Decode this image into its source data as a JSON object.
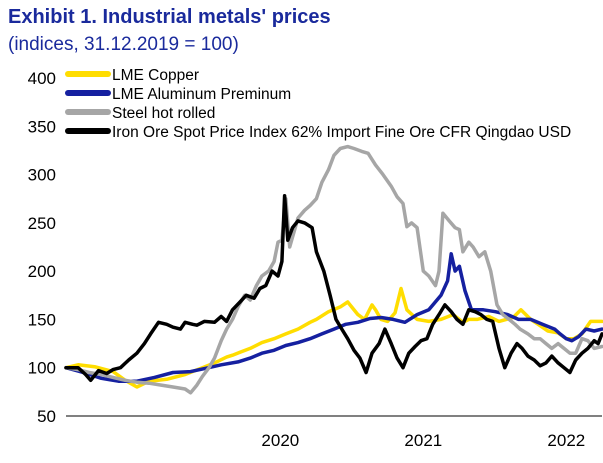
{
  "header": {
    "title": "Exhibit 1. Industrial metals' prices",
    "subtitle": "(indices, 31.12.2019 = 100)"
  },
  "chart_data": {
    "type": "line",
    "x_type": "date",
    "xlim": [
      "2019-01-01",
      "2022-09-30"
    ],
    "ylim": [
      50,
      400
    ],
    "yticks": [
      50,
      100,
      150,
      200,
      250,
      300,
      350,
      400
    ],
    "xtick_labels": [
      {
        "date": "2020-07-01",
        "label": "2020"
      },
      {
        "date": "2021-07-01",
        "label": "2021"
      },
      {
        "date": "2022-07-01",
        "label": "2022"
      }
    ],
    "grid": false,
    "legend_position": "top-left",
    "series": [
      {
        "name": "LME Copper",
        "color": "#ffdd00",
        "points": [
          [
            "2019-01-01",
            100
          ],
          [
            "2019-02-01",
            103
          ],
          [
            "2019-03-15",
            101
          ],
          [
            "2019-05-01",
            96
          ],
          [
            "2019-06-01",
            87
          ],
          [
            "2019-07-01",
            80
          ],
          [
            "2019-08-01",
            86
          ],
          [
            "2019-09-15",
            88
          ],
          [
            "2019-11-01",
            93
          ],
          [
            "2019-12-15",
            100
          ],
          [
            "2020-01-15",
            105
          ],
          [
            "2020-02-15",
            111
          ],
          [
            "2020-03-01",
            113
          ],
          [
            "2020-03-20",
            116
          ],
          [
            "2020-04-15",
            120
          ],
          [
            "2020-05-15",
            126
          ],
          [
            "2020-06-15",
            130
          ],
          [
            "2020-07-15",
            135
          ],
          [
            "2020-08-15",
            140
          ],
          [
            "2020-09-15",
            147
          ],
          [
            "2020-10-01",
            150
          ],
          [
            "2020-11-01",
            158
          ],
          [
            "2020-12-01",
            163
          ],
          [
            "2020-12-20",
            168
          ],
          [
            "2021-01-15",
            155
          ],
          [
            "2021-02-01",
            150
          ],
          [
            "2021-02-20",
            165
          ],
          [
            "2021-03-01",
            160
          ],
          [
            "2021-03-15",
            150
          ],
          [
            "2021-04-01",
            148
          ],
          [
            "2021-04-20",
            157
          ],
          [
            "2021-05-05",
            182
          ],
          [
            "2021-05-20",
            160
          ],
          [
            "2021-06-15",
            150
          ],
          [
            "2021-07-15",
            148
          ],
          [
            "2021-08-15",
            150
          ],
          [
            "2021-09-15",
            155
          ],
          [
            "2021-10-10",
            147
          ],
          [
            "2021-10-25",
            150
          ],
          [
            "2021-11-15",
            150
          ],
          [
            "2021-12-15",
            153
          ],
          [
            "2022-01-10",
            148
          ],
          [
            "2022-02-15",
            152
          ],
          [
            "2022-03-07",
            160
          ],
          [
            "2022-04-01",
            150
          ],
          [
            "2022-04-20",
            145
          ],
          [
            "2022-05-15",
            138
          ],
          [
            "2022-06-10",
            136
          ],
          [
            "2022-07-01",
            130
          ],
          [
            "2022-07-20",
            130
          ],
          [
            "2022-08-10",
            135
          ],
          [
            "2022-09-01",
            148
          ],
          [
            "2022-09-30",
            148
          ]
        ]
      },
      {
        "name": "LME Aluminum Preminum",
        "color": "#1520a0",
        "points": [
          [
            "2019-01-01",
            100
          ],
          [
            "2019-02-15",
            95
          ],
          [
            "2019-04-01",
            89
          ],
          [
            "2019-05-15",
            86
          ],
          [
            "2019-07-01",
            86
          ],
          [
            "2019-08-15",
            90
          ],
          [
            "2019-10-01",
            95
          ],
          [
            "2019-11-15",
            96
          ],
          [
            "2019-12-31",
            100
          ],
          [
            "2020-02-01",
            103
          ],
          [
            "2020-03-15",
            106
          ],
          [
            "2020-04-15",
            110
          ],
          [
            "2020-05-15",
            115
          ],
          [
            "2020-06-15",
            118
          ],
          [
            "2020-07-15",
            123
          ],
          [
            "2020-08-15",
            126
          ],
          [
            "2020-09-15",
            130
          ],
          [
            "2020-10-15",
            135
          ],
          [
            "2020-11-15",
            140
          ],
          [
            "2020-12-15",
            145
          ],
          [
            "2021-01-15",
            147
          ],
          [
            "2021-02-15",
            151
          ],
          [
            "2021-03-15",
            152
          ],
          [
            "2021-04-15",
            150
          ],
          [
            "2021-05-15",
            147
          ],
          [
            "2021-06-15",
            155
          ],
          [
            "2021-07-15",
            160
          ],
          [
            "2021-08-15",
            175
          ],
          [
            "2021-09-01",
            190
          ],
          [
            "2021-09-10",
            218
          ],
          [
            "2021-09-20",
            200
          ],
          [
            "2021-10-01",
            205
          ],
          [
            "2021-10-15",
            180
          ],
          [
            "2021-11-01",
            160
          ],
          [
            "2021-12-01",
            160
          ],
          [
            "2022-01-01",
            158
          ],
          [
            "2022-02-01",
            155
          ],
          [
            "2022-03-01",
            150
          ],
          [
            "2022-04-01",
            150
          ],
          [
            "2022-05-01",
            145
          ],
          [
            "2022-06-01",
            140
          ],
          [
            "2022-06-15",
            135
          ],
          [
            "2022-07-01",
            130
          ],
          [
            "2022-07-15",
            128
          ],
          [
            "2022-08-01",
            132
          ],
          [
            "2022-08-20",
            140
          ],
          [
            "2022-09-10",
            138
          ],
          [
            "2022-09-30",
            140
          ]
        ]
      },
      {
        "name": "Steel hot rolled",
        "color": "#a6a6a6",
        "points": [
          [
            "2019-01-01",
            100
          ],
          [
            "2019-02-01",
            98
          ],
          [
            "2019-03-01",
            95
          ],
          [
            "2019-04-01",
            93
          ],
          [
            "2019-05-01",
            90
          ],
          [
            "2019-06-01",
            87
          ],
          [
            "2019-07-01",
            85
          ],
          [
            "2019-08-01",
            84
          ],
          [
            "2019-09-01",
            82
          ],
          [
            "2019-10-01",
            80
          ],
          [
            "2019-11-01",
            78
          ],
          [
            "2019-11-15",
            74
          ],
          [
            "2019-12-01",
            82
          ],
          [
            "2019-12-15",
            91
          ],
          [
            "2020-01-01",
            100
          ],
          [
            "2020-01-15",
            110
          ],
          [
            "2020-02-01",
            128
          ],
          [
            "2020-02-15",
            140
          ],
          [
            "2020-03-01",
            150
          ],
          [
            "2020-03-15",
            163
          ],
          [
            "2020-04-01",
            175
          ],
          [
            "2020-04-15",
            170
          ],
          [
            "2020-05-01",
            185
          ],
          [
            "2020-05-15",
            195
          ],
          [
            "2020-06-01",
            200
          ],
          [
            "2020-06-15",
            210
          ],
          [
            "2020-06-25",
            230
          ],
          [
            "2020-07-05",
            232
          ],
          [
            "2020-07-15",
            275
          ],
          [
            "2020-07-25",
            225
          ],
          [
            "2020-08-15",
            255
          ],
          [
            "2020-09-01",
            263
          ],
          [
            "2020-09-15",
            268
          ],
          [
            "2020-10-01",
            275
          ],
          [
            "2020-10-15",
            292
          ],
          [
            "2020-11-01",
            305
          ],
          [
            "2020-11-15",
            320
          ],
          [
            "2020-12-01",
            327
          ],
          [
            "2020-12-20",
            329
          ],
          [
            "2021-01-05",
            327
          ],
          [
            "2021-01-25",
            324
          ],
          [
            "2021-02-10",
            322
          ],
          [
            "2021-03-01",
            310
          ],
          [
            "2021-03-20",
            300
          ],
          [
            "2021-04-10",
            288
          ],
          [
            "2021-04-25",
            277
          ],
          [
            "2021-05-10",
            270
          ],
          [
            "2021-05-20",
            246
          ],
          [
            "2021-06-01",
            250
          ],
          [
            "2021-06-15",
            245
          ],
          [
            "2021-07-01",
            200
          ],
          [
            "2021-07-15",
            195
          ],
          [
            "2021-08-01",
            185
          ],
          [
            "2021-08-10",
            200
          ],
          [
            "2021-08-20",
            260
          ],
          [
            "2021-09-05",
            252
          ],
          [
            "2021-09-20",
            245
          ],
          [
            "2021-10-01",
            243
          ],
          [
            "2021-10-10",
            220
          ],
          [
            "2021-10-25",
            230
          ],
          [
            "2021-11-05",
            225
          ],
          [
            "2021-11-20",
            215
          ],
          [
            "2021-12-05",
            220
          ],
          [
            "2021-12-20",
            200
          ],
          [
            "2022-01-05",
            165
          ],
          [
            "2022-01-20",
            155
          ],
          [
            "2022-02-05",
            150
          ],
          [
            "2022-02-20",
            145
          ],
          [
            "2022-03-05",
            140
          ],
          [
            "2022-03-25",
            135
          ],
          [
            "2022-04-10",
            130
          ],
          [
            "2022-04-25",
            130
          ],
          [
            "2022-05-10",
            125
          ],
          [
            "2022-05-25",
            120
          ],
          [
            "2022-06-10",
            125
          ],
          [
            "2022-06-25",
            120
          ],
          [
            "2022-07-10",
            115
          ],
          [
            "2022-07-25",
            115
          ],
          [
            "2022-08-10",
            130
          ],
          [
            "2022-08-25",
            128
          ],
          [
            "2022-09-10",
            120
          ],
          [
            "2022-09-30",
            122
          ]
        ]
      },
      {
        "name": "Iron Ore Spot Price Index 62% Import Fine Ore CFR Qingdao USD",
        "color": "#000000",
        "points": [
          [
            "2019-01-01",
            100
          ],
          [
            "2019-02-01",
            100
          ],
          [
            "2019-02-20",
            93
          ],
          [
            "2019-03-05",
            87
          ],
          [
            "2019-03-25",
            97
          ],
          [
            "2019-04-15",
            94
          ],
          [
            "2019-05-01",
            98
          ],
          [
            "2019-05-20",
            100
          ],
          [
            "2019-06-10",
            108
          ],
          [
            "2019-07-01",
            115
          ],
          [
            "2019-07-20",
            125
          ],
          [
            "2019-08-05",
            135
          ],
          [
            "2019-08-25",
            147
          ],
          [
            "2019-09-15",
            145
          ],
          [
            "2019-10-01",
            142
          ],
          [
            "2019-10-20",
            140
          ],
          [
            "2019-11-01",
            147
          ],
          [
            "2019-11-20",
            145
          ],
          [
            "2019-12-01",
            144
          ],
          [
            "2019-12-20",
            148
          ],
          [
            "2020-01-15",
            147
          ],
          [
            "2020-02-01",
            153
          ],
          [
            "2020-02-15",
            148
          ],
          [
            "2020-03-01",
            160
          ],
          [
            "2020-03-20",
            168
          ],
          [
            "2020-04-05",
            175
          ],
          [
            "2020-04-25",
            172
          ],
          [
            "2020-05-10",
            182
          ],
          [
            "2020-05-25",
            185
          ],
          [
            "2020-06-10",
            200
          ],
          [
            "2020-06-25",
            195
          ],
          [
            "2020-07-05",
            210
          ],
          [
            "2020-07-12",
            278
          ],
          [
            "2020-07-20",
            232
          ],
          [
            "2020-08-01",
            245
          ],
          [
            "2020-08-15",
            252
          ],
          [
            "2020-09-01",
            250
          ],
          [
            "2020-09-20",
            245
          ],
          [
            "2020-10-01",
            220
          ],
          [
            "2020-10-20",
            200
          ],
          [
            "2020-11-05",
            175
          ],
          [
            "2020-11-20",
            150
          ],
          [
            "2020-12-05",
            140
          ],
          [
            "2020-12-20",
            130
          ],
          [
            "2021-01-05",
            118
          ],
          [
            "2021-01-20",
            110
          ],
          [
            "2021-02-05",
            95
          ],
          [
            "2021-02-20",
            115
          ],
          [
            "2021-03-10",
            125
          ],
          [
            "2021-03-25",
            140
          ],
          [
            "2021-04-10",
            125
          ],
          [
            "2021-04-25",
            110
          ],
          [
            "2021-05-10",
            100
          ],
          [
            "2021-05-25",
            115
          ],
          [
            "2021-06-10",
            122
          ],
          [
            "2021-06-25",
            128
          ],
          [
            "2021-07-10",
            130
          ],
          [
            "2021-07-25",
            145
          ],
          [
            "2021-08-10",
            155
          ],
          [
            "2021-08-25",
            165
          ],
          [
            "2021-09-10",
            158
          ],
          [
            "2021-09-25",
            150
          ],
          [
            "2021-10-10",
            145
          ],
          [
            "2021-10-25",
            160
          ],
          [
            "2021-11-10",
            158
          ],
          [
            "2021-11-25",
            155
          ],
          [
            "2021-12-10",
            150
          ],
          [
            "2021-12-25",
            148
          ],
          [
            "2022-01-10",
            120
          ],
          [
            "2022-01-25",
            100
          ],
          [
            "2022-02-10",
            115
          ],
          [
            "2022-02-25",
            125
          ],
          [
            "2022-03-10",
            120
          ],
          [
            "2022-03-25",
            112
          ],
          [
            "2022-04-10",
            108
          ],
          [
            "2022-04-25",
            102
          ],
          [
            "2022-05-10",
            105
          ],
          [
            "2022-05-25",
            112
          ],
          [
            "2022-06-10",
            105
          ],
          [
            "2022-06-25",
            100
          ],
          [
            "2022-07-10",
            95
          ],
          [
            "2022-07-25",
            108
          ],
          [
            "2022-08-10",
            115
          ],
          [
            "2022-08-25",
            120
          ],
          [
            "2022-09-10",
            128
          ],
          [
            "2022-09-20",
            125
          ],
          [
            "2022-09-30",
            135
          ]
        ]
      }
    ]
  }
}
